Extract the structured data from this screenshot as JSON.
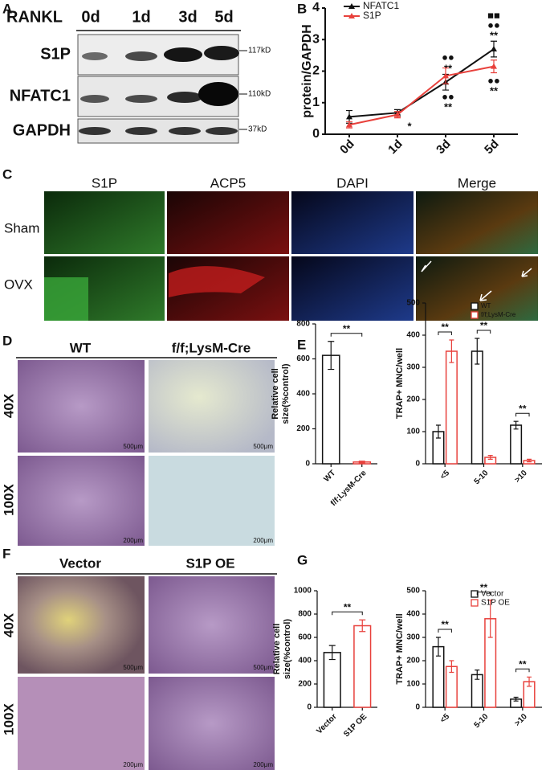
{
  "panel_labels": [
    "A",
    "B",
    "C",
    "D",
    "E",
    "F",
    "G"
  ],
  "blot": {
    "treatment": "RANKL",
    "timepoints": [
      "0d",
      "1d",
      "3d",
      "5d"
    ],
    "rows": [
      {
        "label": "S1P",
        "size": "117kD"
      },
      {
        "label": "NFATC1",
        "size": "110kD"
      },
      {
        "label": "GAPDH",
        "size": "37kD"
      }
    ]
  },
  "fluorescence": {
    "channels": [
      "S1P",
      "ACP5",
      "DAPI",
      "Merge"
    ],
    "groups": [
      "Sham",
      "OVX"
    ]
  },
  "trap_knockout": {
    "columns": [
      "WT",
      "f/f;LysM-Cre"
    ],
    "magnifications": [
      "40X",
      "100X"
    ],
    "scale_bars": [
      [
        "500μm",
        "500μm"
      ],
      [
        "200μm",
        "200μm"
      ]
    ]
  },
  "trap_overexpression": {
    "columns": [
      "Vector",
      "S1P OE"
    ],
    "magnifications": [
      "40X",
      "100X"
    ],
    "scale_bars": [
      [
        "500μm",
        "500μm"
      ],
      [
        "200μm",
        "200μm"
      ]
    ]
  },
  "chart_data": [
    {
      "type": "line",
      "ylabel": "protein/GAPDH",
      "categories": [
        "0d",
        "1d",
        "3d",
        "5d"
      ],
      "series": [
        {
          "name": "NFATC1",
          "color": "#111111",
          "values": [
            0.55,
            0.68,
            1.65,
            2.7
          ],
          "errors": [
            0.2,
            0.1,
            0.25,
            0.25
          ]
        },
        {
          "name": "S1P",
          "color": "#e8413c",
          "values": [
            0.3,
            0.62,
            1.85,
            2.15
          ],
          "errors": [
            0.1,
            0.1,
            0.25,
            0.2
          ]
        }
      ],
      "ylim": [
        0,
        4
      ],
      "yticks": [
        0,
        1,
        2,
        3,
        4
      ],
      "annotations": [
        "*",
        "●●",
        "**",
        "●●",
        "**",
        "■■",
        "●●",
        "**",
        "●●",
        "**"
      ]
    },
    {
      "type": "bar",
      "ylabel": [
        "Relative cell",
        "size(%control)"
      ],
      "categories": [
        "WT",
        "f/f;LysM-Cre"
      ],
      "values": [
        620,
        10
      ],
      "errors": [
        80,
        5
      ],
      "colors": [
        "#111111",
        "#e8413c"
      ],
      "ylim": [
        0,
        800
      ],
      "yticks": [
        0,
        200,
        400,
        600,
        800
      ],
      "significance": [
        "**"
      ]
    },
    {
      "type": "grouped-bar",
      "ylabel": "TRAP+ MNC/well",
      "categories": [
        "<5",
        "5-10",
        ">10"
      ],
      "series": [
        {
          "name": "WT",
          "color": "#111111",
          "values": [
            100,
            350,
            120
          ],
          "errors": [
            20,
            40,
            12
          ]
        },
        {
          "name": "f/f;LysM-Cre",
          "color": "#e8413c",
          "values": [
            350,
            20,
            10
          ],
          "errors": [
            35,
            6,
            4
          ]
        }
      ],
      "ylim": [
        0,
        500
      ],
      "yticks": [
        0,
        100,
        200,
        300,
        400,
        500
      ],
      "significance": [
        "**",
        "**",
        "**"
      ]
    },
    {
      "type": "bar",
      "ylabel": [
        "Relative cell",
        "size(%control)"
      ],
      "categories": [
        "Vector",
        "S1P OE"
      ],
      "values": [
        470,
        700
      ],
      "errors": [
        60,
        50
      ],
      "colors": [
        "#111111",
        "#e8413c"
      ],
      "ylim": [
        0,
        1000
      ],
      "yticks": [
        0,
        200,
        400,
        600,
        800,
        1000
      ],
      "significance": [
        "**"
      ]
    },
    {
      "type": "grouped-bar",
      "ylabel": "TRAP+ MNC/well",
      "categories": [
        "<5",
        "5-10",
        ">10"
      ],
      "series": [
        {
          "name": "Vector",
          "color": "#111111",
          "values": [
            260,
            140,
            35
          ],
          "errors": [
            40,
            20,
            8
          ]
        },
        {
          "name": "S1P OE",
          "color": "#e8413c",
          "values": [
            175,
            380,
            110
          ],
          "errors": [
            25,
            80,
            20
          ]
        }
      ],
      "ylim": [
        0,
        500
      ],
      "yticks": [
        0,
        100,
        200,
        300,
        400,
        500
      ],
      "significance": [
        "**",
        "**",
        "**"
      ]
    }
  ]
}
